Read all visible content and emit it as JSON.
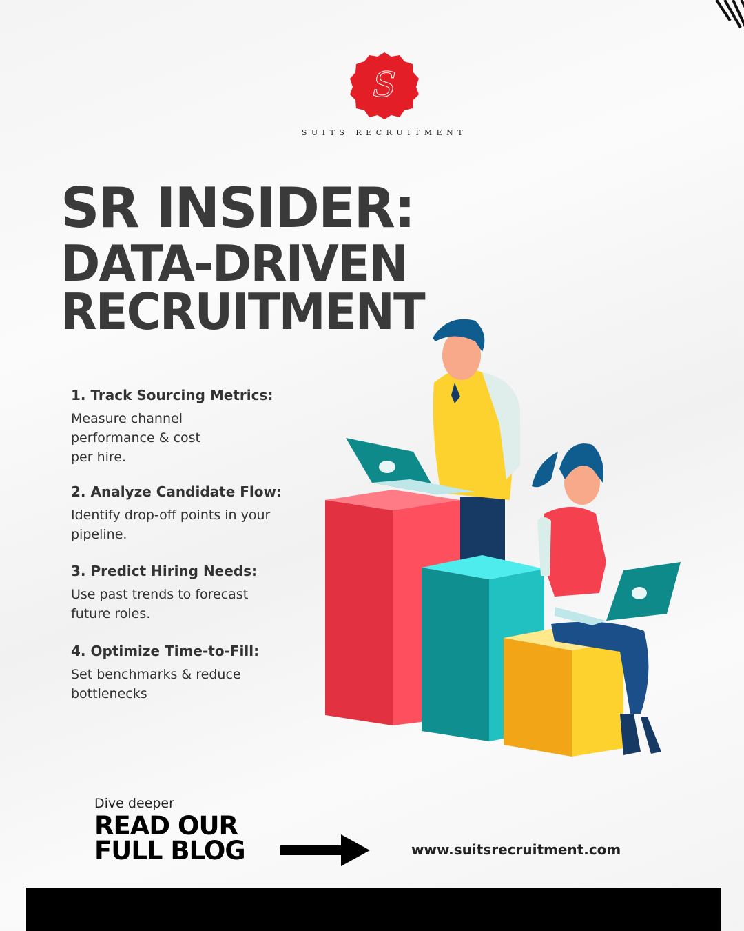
{
  "brand": {
    "name": "SUITS RECRUITMENT",
    "monogram": "S",
    "seal_color": "#e31e26"
  },
  "headline": {
    "line1": "SR INSIDER:",
    "line2": "DATA-DRIVEN",
    "line3": "RECRUITMENT"
  },
  "tips": [
    {
      "title": "1. Track Sourcing Metrics:",
      "body": " Measure channel performance & cost per hire."
    },
    {
      "title": "2. Analyze Candidate Flow:",
      "body": "Identify drop-off points in your pipeline."
    },
    {
      "title": "3. Predict Hiring Needs:",
      "body": "Use past trends to forecast future roles."
    },
    {
      "title": "4. Optimize Time-to-Fill:",
      "body": "Set benchmarks & reduce bottlenecks"
    }
  ],
  "cta": {
    "kicker": "Dive deeper",
    "line1": "READ OUR",
    "line2": "FULL BLOG",
    "url": "www.suitsrecruitment.com"
  },
  "colors": {
    "red": "#e5323f",
    "teal": "#12a0a0",
    "yellow": "#f4b21a",
    "footer": "#000000"
  }
}
